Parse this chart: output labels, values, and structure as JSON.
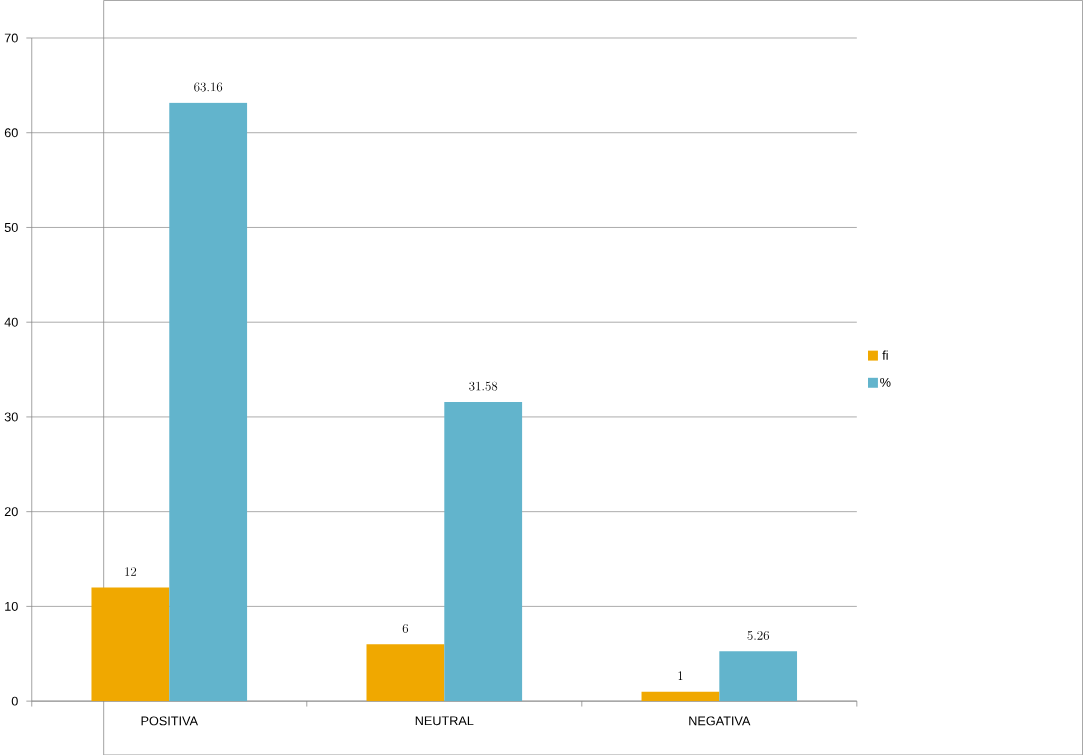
{
  "chart_data": {
    "type": "bar",
    "categories": [
      "POSITIVA",
      "NEUTRAL",
      "NEGATIVA"
    ],
    "series": [
      {
        "name": "fi",
        "color": "#f0a800",
        "values": [
          12,
          6,
          1
        ]
      },
      {
        "name": "%",
        "color": "#62b4cc",
        "values": [
          63.16,
          31.58,
          5.26
        ]
      }
    ],
    "ylim": [
      0,
      70
    ],
    "yticks": [
      0,
      10,
      20,
      30,
      40,
      50,
      60,
      70
    ],
    "grid": "y",
    "legend": "right",
    "data_labels": true
  }
}
